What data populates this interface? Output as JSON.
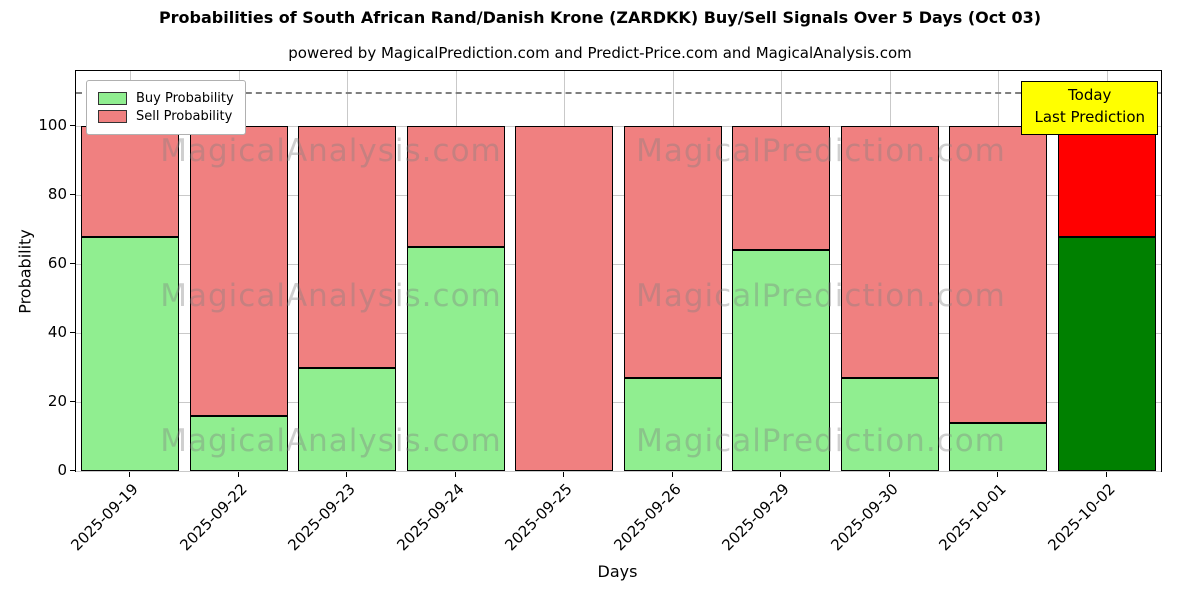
{
  "title": "Probabilities of South African Rand/Danish Krone (ZARDKK) Buy/Sell Signals Over 5 Days (Oct 03)",
  "subtitle": "powered by MagicalPrediction.com and Predict-Price.com and MagicalAnalysis.com",
  "legend": {
    "buy_label": "Buy Probability",
    "sell_label": "Sell Probability"
  },
  "annotation": {
    "line1": "Today",
    "line2": "Last Prediction"
  },
  "watermarks": [
    "MagicalAnalysis.com",
    "MagicalPrediction.com"
  ],
  "colors": {
    "buy": "#90ee90",
    "sell": "#f08080",
    "buy_today": "#008000",
    "sell_today": "#ff0000",
    "edge": "#000000",
    "annotation_bg": "#ffff00",
    "grid": "#c9c9c9",
    "dashed": "#7f7f7f"
  },
  "chart_data": {
    "type": "bar",
    "stacked": true,
    "title": "Probabilities of South African Rand/Danish Krone (ZARDKK) Buy/Sell Signals Over 5 Days (Oct 03)",
    "xlabel": "Days",
    "ylabel": "Probability",
    "categories": [
      "2025-09-19",
      "2025-09-22",
      "2025-09-23",
      "2025-09-24",
      "2025-09-25",
      "2025-09-26",
      "2025-09-29",
      "2025-09-30",
      "2025-10-01",
      "2025-10-02"
    ],
    "series": [
      {
        "name": "Buy Probability",
        "values": [
          68,
          16,
          30,
          65,
          0,
          27,
          64,
          27,
          14,
          68
        ]
      },
      {
        "name": "Sell Probability",
        "values": [
          32,
          84,
          70,
          35,
          100,
          73,
          36,
          73,
          86,
          32
        ]
      }
    ],
    "ylim": [
      0,
      116
    ],
    "yticks": [
      0,
      20,
      40,
      60,
      80,
      100
    ],
    "dashed_line_y": 110,
    "grid": true,
    "legend_position": "upper left",
    "today_annotation_index": 9
  }
}
